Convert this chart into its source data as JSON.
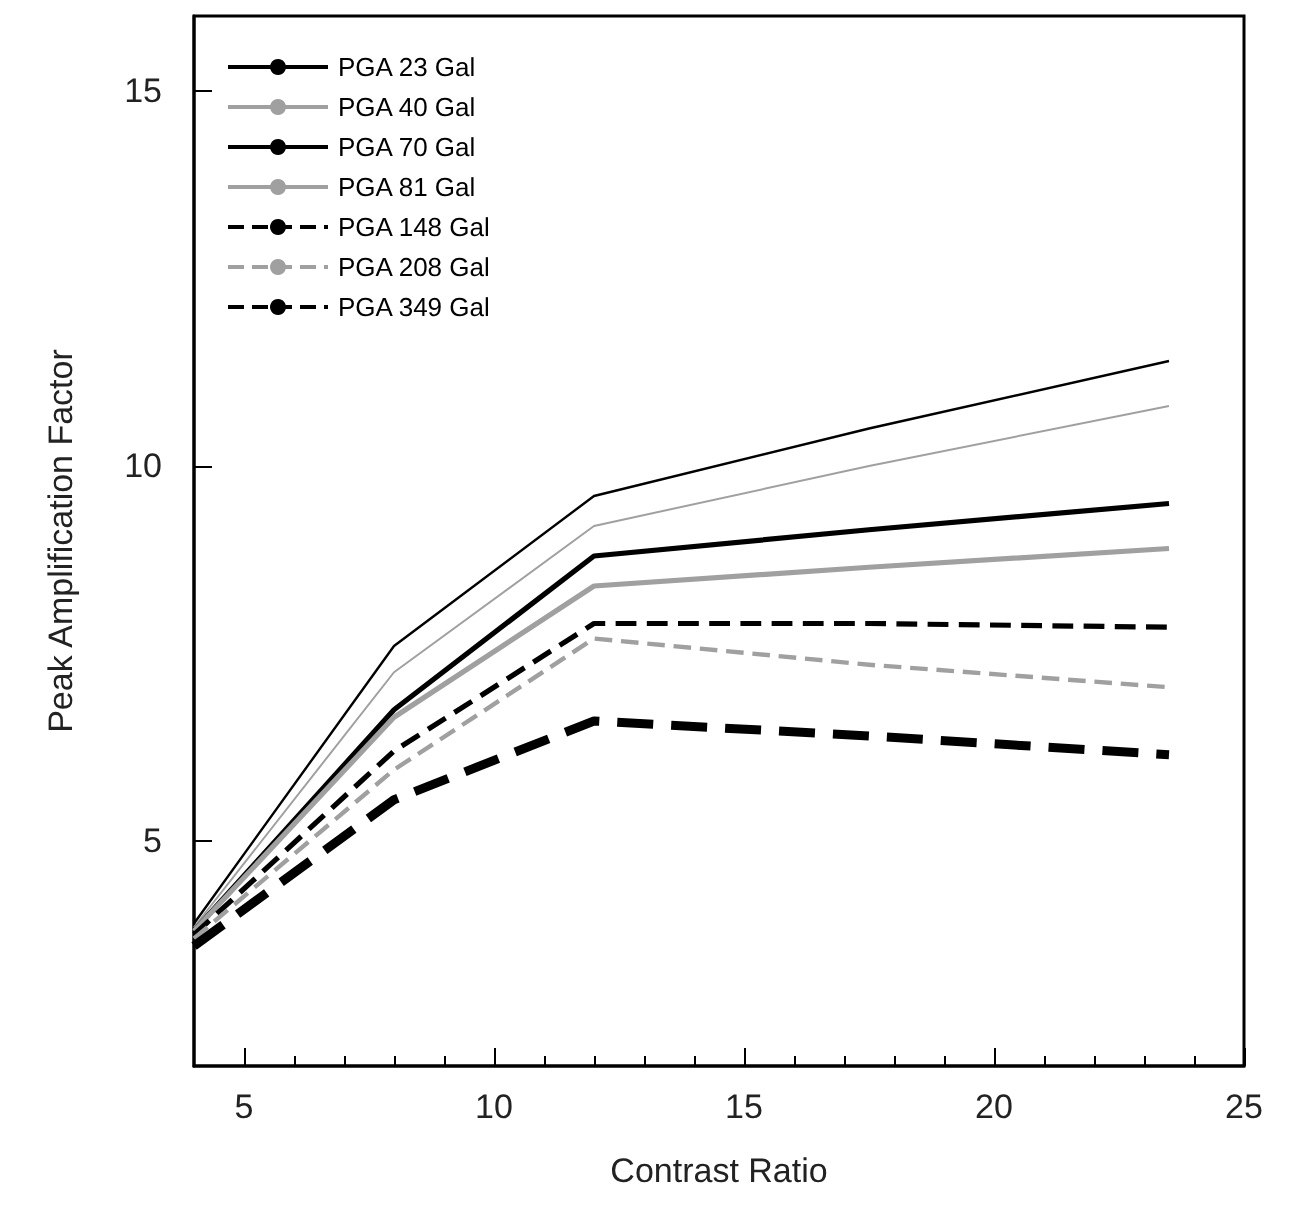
{
  "chart_data": {
    "type": "line",
    "xlabel": "Contrast Ratio",
    "ylabel": "Peak Amplification Factor",
    "x": [
      4,
      8,
      12,
      17.5,
      23.5
    ],
    "xlim": [
      4,
      25
    ],
    "xticks": [
      5,
      10,
      15,
      20,
      25
    ],
    "ylim": [
      2,
      16
    ],
    "yticks": [
      5,
      10,
      15
    ],
    "grid": false,
    "legend": "top left",
    "marker": "none",
    "series": [
      {
        "name": "PGA 23 Gal",
        "color": "#000000",
        "line_style": "solid",
        "values": [
          3.9,
          7.6,
          9.6,
          10.5,
          11.4
        ]
      },
      {
        "name": "PGA 40 Gal",
        "color": "#a0a0a0",
        "line_style": "solid",
        "values": [
          3.85,
          7.25,
          9.2,
          10.0,
          10.8
        ]
      },
      {
        "name": "PGA 70 Gal",
        "color": "#000000",
        "line_style": "solid",
        "values": [
          3.8,
          6.75,
          8.8,
          9.15,
          9.5
        ]
      },
      {
        "name": "PGA 81 Gal",
        "color": "#a0a0a0",
        "line_style": "solid",
        "values": [
          3.8,
          6.65,
          8.4,
          8.65,
          8.9
        ]
      },
      {
        "name": "PGA 148 Gal",
        "color": "#000000",
        "line_style": "dashed",
        "values": [
          3.75,
          6.2,
          7.9,
          7.9,
          7.85
        ]
      },
      {
        "name": "PGA 208 Gal",
        "color": "#a0a0a0",
        "line_style": "dashed",
        "values": [
          3.7,
          5.95,
          7.7,
          7.35,
          7.05
        ]
      },
      {
        "name": "PGA 349 Gal",
        "color": "#000000",
        "line_style": "dashed",
        "values": [
          3.6,
          5.55,
          6.6,
          6.4,
          6.15
        ]
      }
    ]
  }
}
